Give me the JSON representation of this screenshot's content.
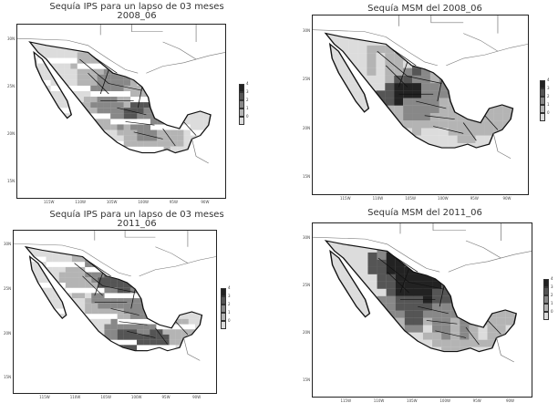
{
  "panels": [
    {
      "title": [
        "Sequía IPS para un lapso de 03 meses",
        "2008_06"
      ],
      "lat_labels": [
        "30N",
        "25N",
        "20N",
        "15N"
      ],
      "lon_labels": [
        "115W",
        "110W",
        "105W",
        "100W",
        "95W",
        "90W"
      ],
      "legend": [
        "4",
        "3",
        "2",
        "1",
        "0"
      ]
    },
    {
      "title": [
        "Sequía MSM del 2008_06"
      ],
      "lat_labels": [
        "30N",
        "25N",
        "20N",
        "15N"
      ],
      "lon_labels": [
        "115W",
        "110W",
        "105W",
        "100W",
        "95W",
        "90W"
      ],
      "legend": [
        "4",
        "3",
        "2",
        "1",
        "0"
      ]
    },
    {
      "title": [
        "Sequía IPS para un lapso de 03 meses",
        "2011_06"
      ],
      "lat_labels": [
        "30N",
        "25N",
        "20N",
        "15N"
      ],
      "lon_labels": [
        "115W",
        "110W",
        "105W",
        "100W",
        "95W",
        "90W"
      ],
      "legend": [
        "4",
        "3",
        "2",
        "1",
        "0"
      ]
    },
    {
      "title": [
        "Sequía MSM del 2011_06"
      ],
      "lat_labels": [
        "30N",
        "25N",
        "20N",
        "15N"
      ],
      "lon_labels": [
        "115W",
        "110W",
        "105W",
        "100W",
        "95W",
        "90W"
      ],
      "legend": [
        "4",
        "3",
        "2",
        "1",
        "0"
      ]
    }
  ],
  "colors": {
    "level_4": "#222222",
    "level_3": "#555555",
    "level_2": "#888888",
    "level_1": "#b4b4b4",
    "level_0": "#dcdcdc"
  }
}
